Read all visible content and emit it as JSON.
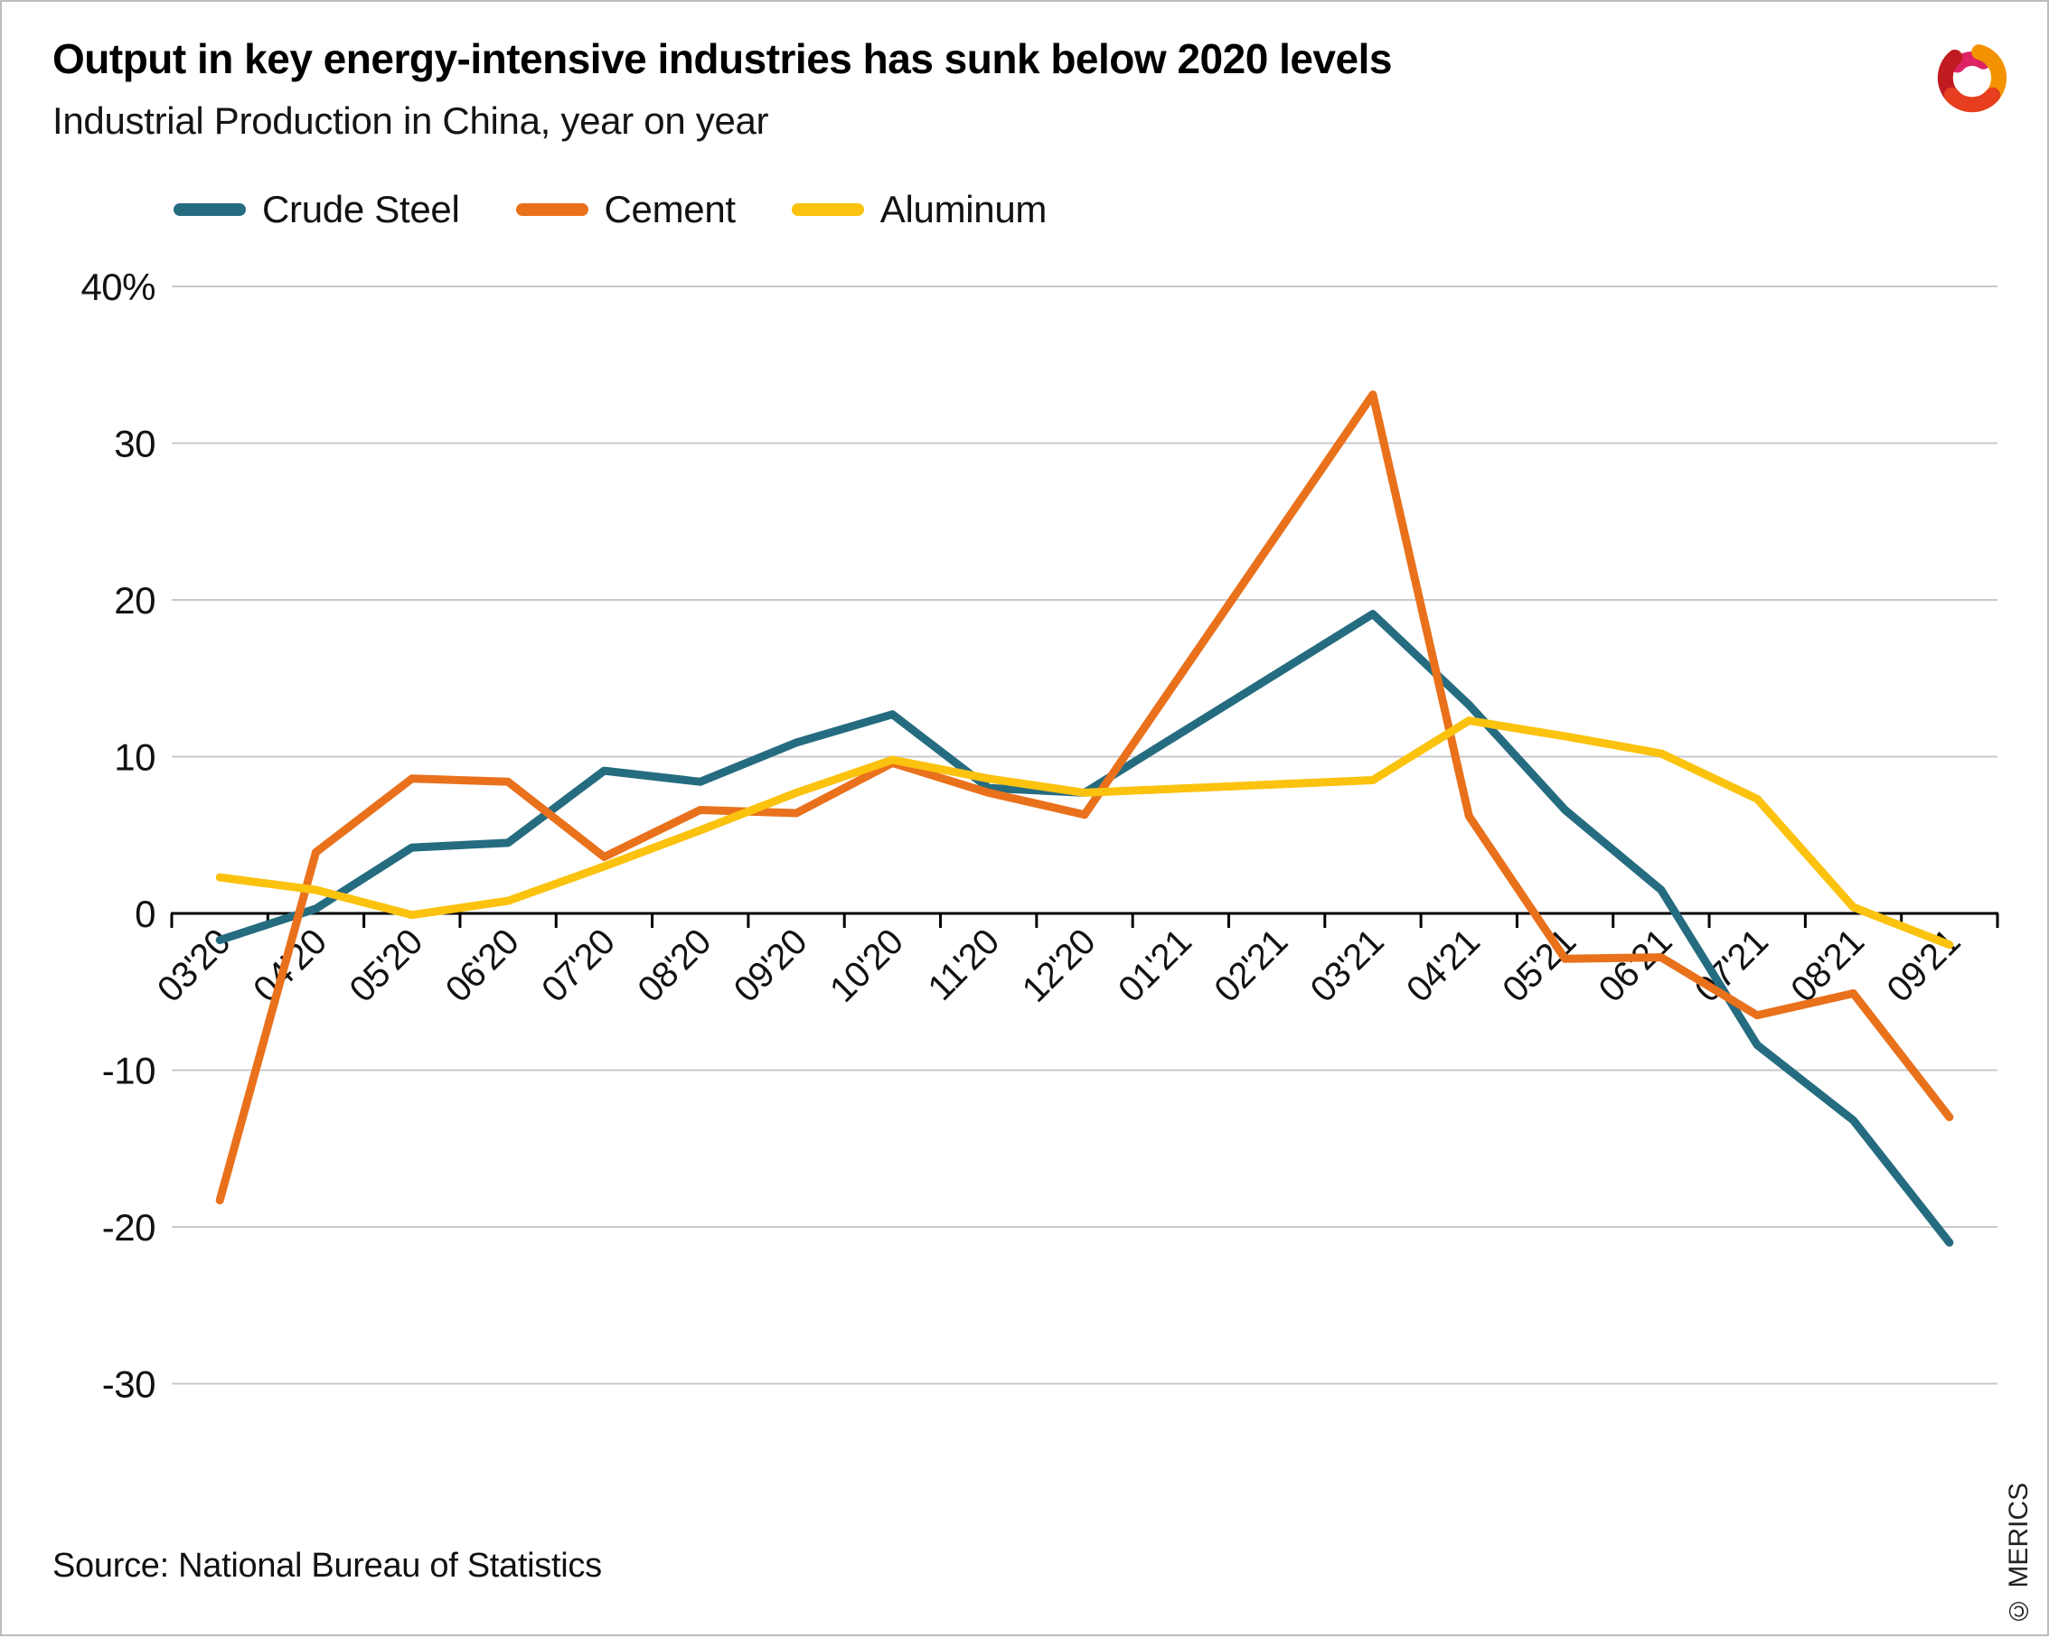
{
  "header": {
    "title": "Output in key energy-intensive industries has sunk below 2020 levels",
    "subtitle": "Industrial Production in China, year on year"
  },
  "brand": {
    "logo_colors": {
      "magenta": "#DD2366",
      "orange": "#F39200",
      "dark_red": "#C01B20",
      "red": "#E63E1E"
    }
  },
  "legend": [
    {
      "label": "Crude Steel",
      "color": "#256C80"
    },
    {
      "label": "Cement",
      "color": "#E9711C"
    },
    {
      "label": "Aluminum",
      "color": "#FBC20E"
    }
  ],
  "chart_data": {
    "type": "line",
    "title": "Output in key energy-intensive industries has sunk below 2020 levels",
    "subtitle": "Industrial Production in China, year on year",
    "categories": [
      "03'20",
      "04'20",
      "05'20",
      "06'20",
      "07'20",
      "08'20",
      "09'20",
      "10'20",
      "11'20",
      "12'20",
      "01'21",
      "02'21",
      "03'21",
      "04'21",
      "05'21",
      "06'21",
      "07'21",
      "08'21",
      "09'21"
    ],
    "series": [
      {
        "name": "Crude Steel",
        "color": "#256C80",
        "values": [
          -1.7,
          0.3,
          4.2,
          4.5,
          9.1,
          8.4,
          10.9,
          12.7,
          8.0,
          7.7,
          null,
          null,
          19.1,
          13.3,
          6.6,
          1.5,
          -8.4,
          -13.2,
          -21.0
        ]
      },
      {
        "name": "Cement",
        "color": "#E9711C",
        "values": [
          -18.3,
          3.9,
          8.6,
          8.4,
          3.6,
          6.6,
          6.4,
          9.6,
          7.7,
          6.3,
          null,
          null,
          33.1,
          6.2,
          -2.9,
          -2.8,
          -6.5,
          -5.1,
          -13.0
        ]
      },
      {
        "name": "Aluminum",
        "color": "#FBC20E",
        "values": [
          2.3,
          1.5,
          -0.1,
          0.8,
          3.0,
          5.3,
          7.7,
          9.8,
          8.6,
          7.7,
          null,
          null,
          8.5,
          12.3,
          11.3,
          10.2,
          7.3,
          0.4,
          -2.0
        ]
      }
    ],
    "unit": "%",
    "yticks": [
      40,
      30,
      20,
      10,
      0,
      -10,
      -20,
      -30
    ],
    "ytick_labels": [
      "40%",
      "30",
      "20",
      "10",
      "0",
      "-10",
      "-20",
      "-30"
    ],
    "ylim": [
      -30,
      40
    ],
    "x_label_rotation": 45,
    "grid": true,
    "legend_position": "top-left",
    "colors": {
      "grid": "#C9C9C9",
      "axis": "#000000"
    }
  },
  "footer": {
    "source": "Source: National Bureau of Statistics",
    "copyright": "© MERICS"
  }
}
